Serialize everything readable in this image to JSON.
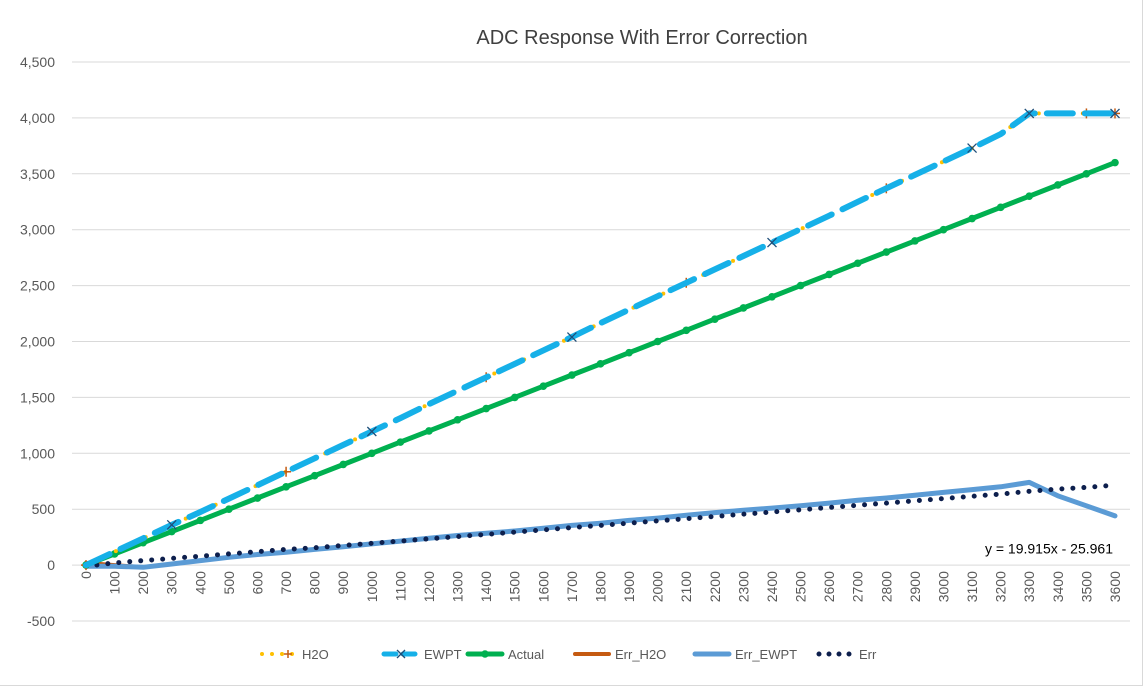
{
  "chart_data": {
    "type": "line",
    "title": "ADC Response With Error Correction",
    "xlabel": "",
    "ylabel": "",
    "ylim": [
      -500,
      4500
    ],
    "yticks": [
      -500,
      0,
      500,
      1000,
      1500,
      2000,
      2500,
      3000,
      3500,
      4000,
      4500
    ],
    "ytick_labels": [
      "-500",
      "0",
      "500",
      "1,000",
      "1,500",
      "2,000",
      "2,500",
      "3,000",
      "3,500",
      "4,000",
      "4,500"
    ],
    "categories": [
      "0",
      "100",
      "200",
      "300",
      "400",
      "500",
      "600",
      "700",
      "800",
      "900",
      "1000",
      "1100",
      "1200",
      "1300",
      "1400",
      "1500",
      "1600",
      "1700",
      "1800",
      "1900",
      "2000",
      "2100",
      "2200",
      "2300",
      "2400",
      "2500",
      "2600",
      "2700",
      "2800",
      "2900",
      "3000",
      "3100",
      "3200",
      "3300",
      "3400",
      "3500",
      "3600"
    ],
    "grid": true,
    "legend_position": "bottom",
    "series": [
      {
        "name": "H2O",
        "color": "#FFC000",
        "style": "dotted",
        "values": [
          0,
          120,
          240,
          360,
          475,
          595,
          715,
          835,
          955,
          1075,
          1195,
          1315,
          1440,
          1560,
          1680,
          1800,
          1920,
          2040,
          2165,
          2285,
          2405,
          2525,
          2645,
          2765,
          2885,
          3005,
          3125,
          3250,
          3370,
          3490,
          3610,
          3730,
          3855,
          4040,
          4040,
          4040,
          4040
        ]
      },
      {
        "name": "EWPT",
        "color": "#16B0E8",
        "style": "dashed",
        "values": [
          0,
          120,
          240,
          360,
          475,
          595,
          715,
          835,
          955,
          1075,
          1195,
          1315,
          1440,
          1560,
          1680,
          1800,
          1920,
          2040,
          2165,
          2285,
          2405,
          2525,
          2645,
          2765,
          2885,
          3005,
          3125,
          3250,
          3370,
          3490,
          3610,
          3730,
          3855,
          4040,
          4040,
          4040,
          4040
        ]
      },
      {
        "name": "Actual",
        "color": "#00B050",
        "style": "solid",
        "values": [
          0,
          100,
          200,
          300,
          400,
          500,
          600,
          700,
          800,
          900,
          1000,
          1100,
          1200,
          1300,
          1400,
          1500,
          1600,
          1700,
          1800,
          1900,
          2000,
          2100,
          2200,
          2300,
          2400,
          2500,
          2600,
          2700,
          2800,
          2900,
          3000,
          3100,
          3200,
          3300,
          3400,
          3500,
          3600
        ]
      },
      {
        "name": "Err_H2O",
        "color": "#C55A11",
        "style": "solid",
        "values": [
          20,
          0,
          -20,
          10,
          40,
          70,
          95,
          115,
          140,
          165,
          190,
          215,
          240,
          265,
          285,
          305,
          330,
          355,
          375,
          400,
          420,
          445,
          470,
          490,
          510,
          530,
          555,
          580,
          600,
          625,
          650,
          675,
          700,
          740,
          null,
          null,
          null
        ]
      },
      {
        "name": "Err_EWPT",
        "color": "#5B9BD5",
        "style": "solid",
        "values": [
          -10,
          -10,
          -20,
          10,
          40,
          70,
          95,
          115,
          140,
          165,
          190,
          215,
          240,
          265,
          285,
          305,
          330,
          355,
          375,
          400,
          420,
          445,
          470,
          490,
          510,
          530,
          555,
          580,
          600,
          625,
          650,
          675,
          700,
          740,
          620,
          530,
          440
        ]
      },
      {
        "name": "Err",
        "color": "#0D1F4D",
        "style": "dotted",
        "values": [
          -10,
          20,
          40,
          60,
          80,
          100,
          120,
          140,
          155,
          175,
          195,
          215,
          235,
          255,
          275,
          295,
          315,
          335,
          355,
          375,
          395,
          415,
          435,
          455,
          475,
          495,
          515,
          535,
          555,
          575,
          595,
          615,
          635,
          660,
          680,
          695,
          715
        ]
      }
    ],
    "annotations": [
      {
        "text": "y = 19.915x - 25.961",
        "x": "3600",
        "y": 150
      }
    ]
  }
}
